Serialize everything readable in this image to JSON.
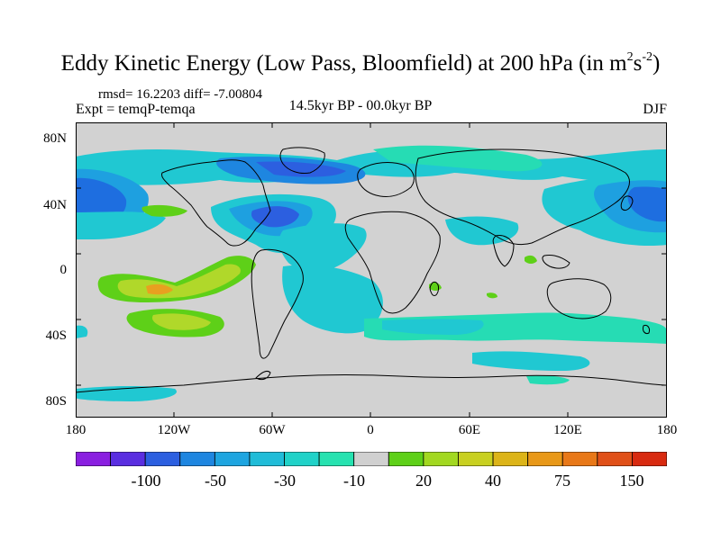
{
  "title": {
    "main": "Eddy Kinetic Energy (Low Pass, Bloomfield) at 200 hPa (in m",
    "sup1": "2",
    "mid": "s",
    "sup2": "-2",
    "end": ")"
  },
  "stats": "rmsd= 16.2203 diff= -7.00804",
  "expt": "Expt = temqP-temqa",
  "period": "14.5kyr BP - 00.0kyr BP",
  "season": "DJF",
  "lat_labels": [
    "80N",
    "40N",
    "0",
    "40S",
    "80S"
  ],
  "lon_labels": [
    "180",
    "120W",
    "60W",
    "0",
    "60E",
    "120E",
    "180"
  ],
  "colorbar": {
    "labels": [
      "-100",
      "-50",
      "-30",
      "-10",
      "20",
      "40",
      "75",
      "150"
    ],
    "colors": [
      "#8a1fe0",
      "#5a2ee0",
      "#2c5fe0",
      "#1e86e0",
      "#1ea5e0",
      "#20bcd8",
      "#20d2c8",
      "#26e2b0",
      "#d0d0d0",
      "#5ed018",
      "#a2d820",
      "#c8d020",
      "#dcb418",
      "#e89818",
      "#e87818",
      "#e05018",
      "#d82a10"
    ]
  },
  "colors": {
    "land_bg": "#d2d2d2",
    "coast": "#000000",
    "blue_dark": "#1e6ee0",
    "blue_mid": "#1ea0e0",
    "cyan": "#20c8d2",
    "teal": "#26dcb4",
    "green": "#5ed018",
    "yellow_green": "#b0d82a",
    "orange": "#e8a020"
  }
}
